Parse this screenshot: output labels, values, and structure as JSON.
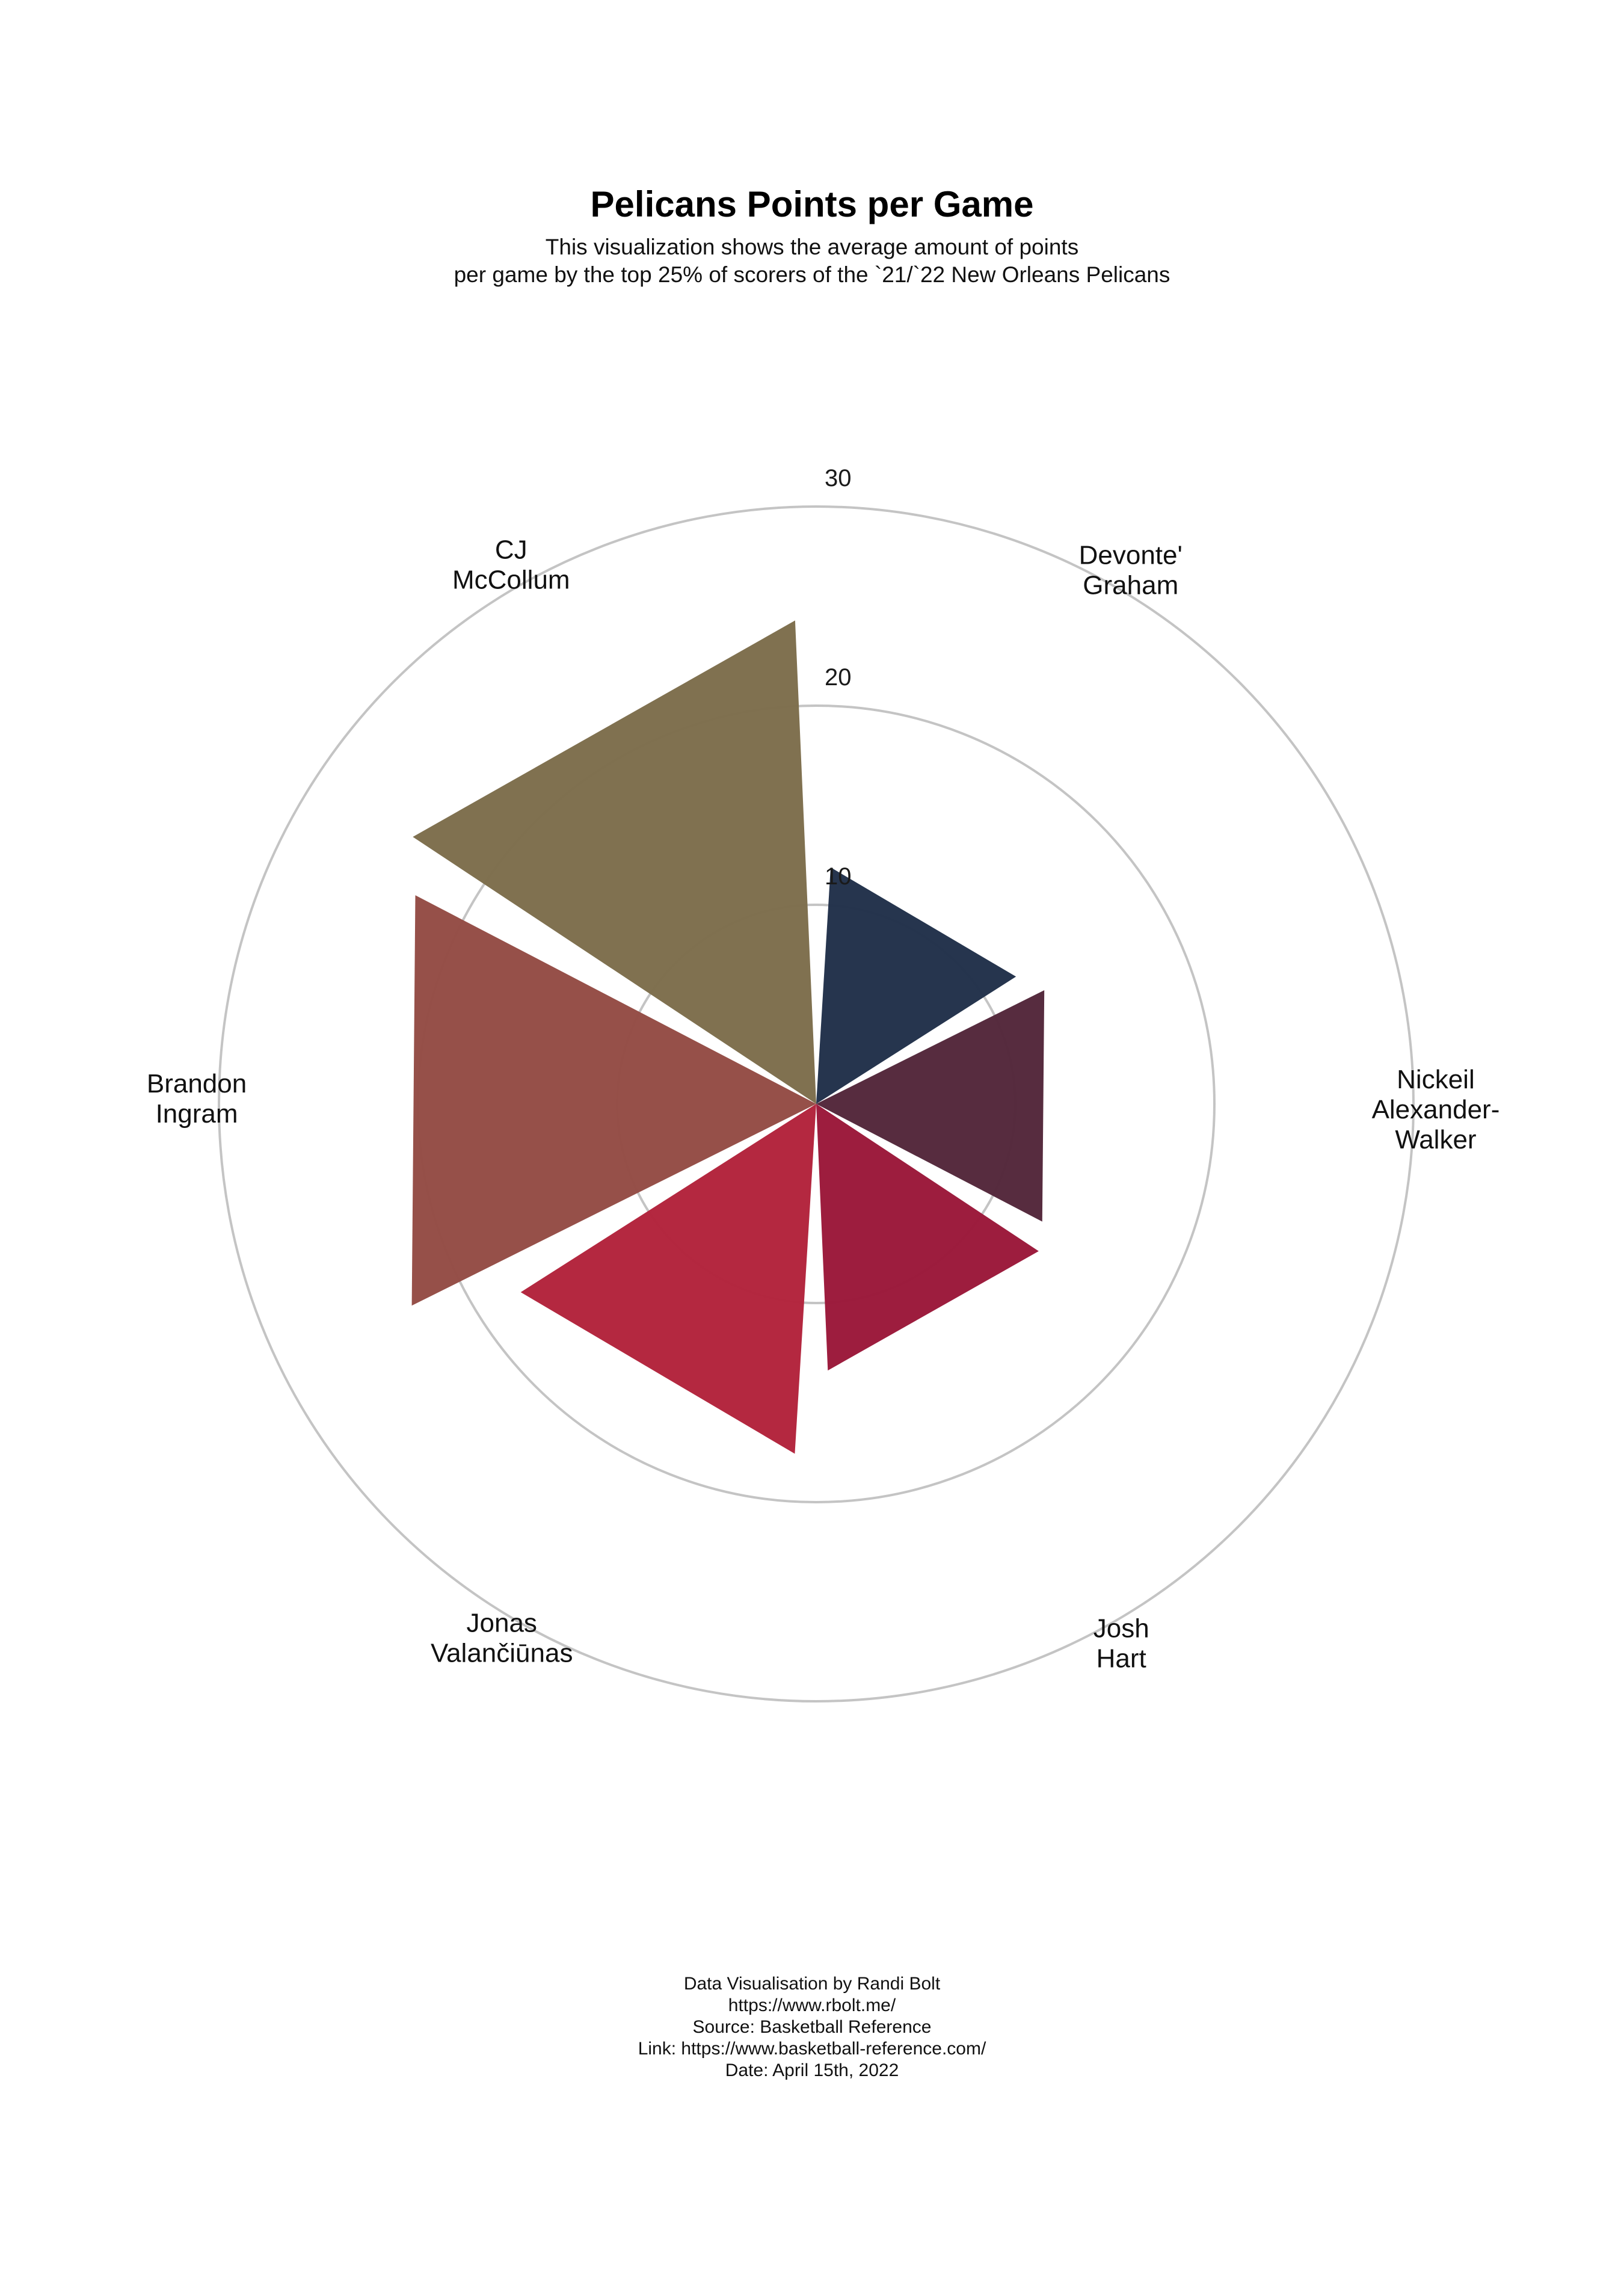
{
  "header": {
    "title": "Pelicans Points per Game",
    "subtitle_line1": "This visualization shows the average amount of points",
    "subtitle_line2": "per game by the top 25% of scorers of the `21/`22  New Orleans Pelicans"
  },
  "chart_data": {
    "type": "polar-bar",
    "title": "Pelicans Points per Game",
    "radial_ticks": [
      10,
      20,
      30
    ],
    "rmax": 30,
    "grid": true,
    "categories": [
      {
        "label_lines": [
          "Devonte'",
          "Graham"
        ],
        "value": 11.9,
        "color": "#22314a"
      },
      {
        "label_lines": [
          "Nickeil",
          "Alexander-",
          "Walker"
        ],
        "value": 12.8,
        "color": "#54283b"
      },
      {
        "label_lines": [
          "Josh",
          "Hart"
        ],
        "value": 13.4,
        "color": "#9b183a"
      },
      {
        "label_lines": [
          "Jonas",
          "Valančiūnas"
        ],
        "value": 17.6,
        "color": "#b2243c"
      },
      {
        "label_lines": [
          "Brandon",
          "Ingram"
        ],
        "value": 22.7,
        "color": "#944d45"
      },
      {
        "label_lines": [
          "CJ",
          "McCollum"
        ],
        "value": 24.3,
        "color": "#7d6e4d"
      }
    ]
  },
  "footer": {
    "line1": "Data Visualisation by Randi Bolt",
    "line2": "https://www.rbolt.me/",
    "line3": "Source: Basketball Reference",
    "line4": "Link: https://www.basketball-reference.com/",
    "line5": "Date: April 15th, 2022"
  }
}
